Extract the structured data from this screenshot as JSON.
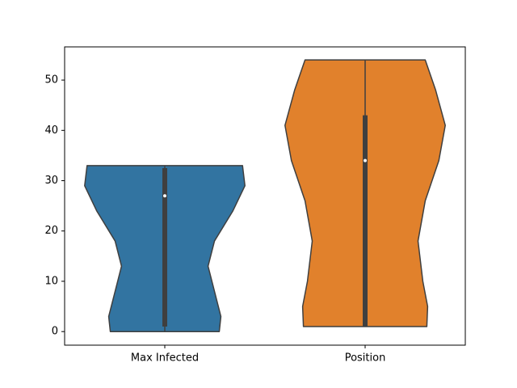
{
  "chart_data": {
    "type": "violin",
    "categories": [
      "Max Infected",
      "Position"
    ],
    "series": [
      {
        "name": "Max Infected",
        "color": "#3274a1",
        "min": 0,
        "q1": 1,
        "median": 27,
        "q3": 32.5,
        "max": 33,
        "density_y": [
          0,
          3,
          8,
          13,
          18,
          24,
          29,
          33
        ],
        "density": [
          0.68,
          0.7,
          0.62,
          0.54,
          0.62,
          0.85,
          1.0,
          0.97
        ]
      },
      {
        "name": "Position",
        "color": "#e1812c",
        "min": 1,
        "q1": 1,
        "median": 34,
        "q3": 43,
        "max": 54,
        "density_y": [
          1,
          5,
          10,
          18,
          26,
          34,
          41,
          48,
          54
        ],
        "density": [
          0.77,
          0.78,
          0.72,
          0.66,
          0.75,
          0.92,
          1.0,
          0.88,
          0.75
        ]
      }
    ],
    "ylim": [
      -2.7,
      56.6
    ],
    "yticks": [
      0,
      10,
      20,
      30,
      40,
      50
    ]
  }
}
